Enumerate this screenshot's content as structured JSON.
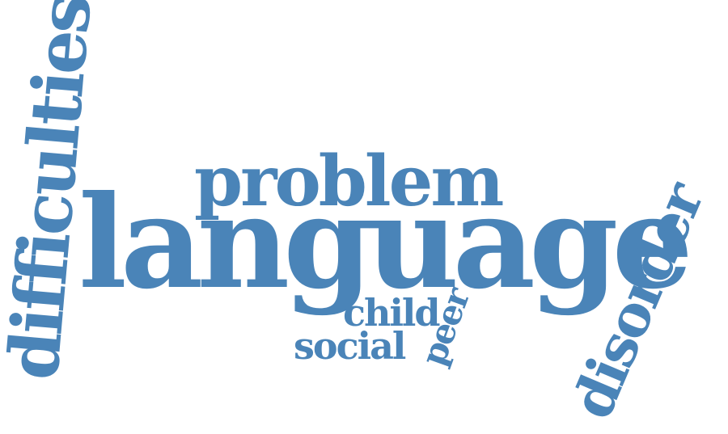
{
  "word_cloud": {
    "color": "#4a84b8",
    "words": {
      "language": "language",
      "problem": "problem",
      "difficulties": "difficulties",
      "disorder": "disorder",
      "child": "child",
      "social": "social",
      "peer": "peer"
    }
  }
}
